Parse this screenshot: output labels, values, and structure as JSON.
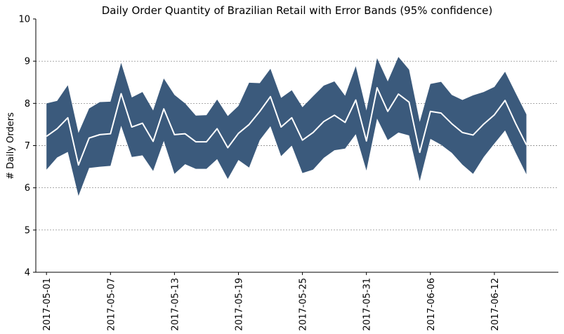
{
  "chart_data": {
    "type": "area",
    "title": "Daily Order Quantity of Brazilian Retail with Error Bands (95% confidence)",
    "xlabel": "",
    "ylabel": "# Daily Orders",
    "ylim": [
      4,
      10
    ],
    "xlim": [
      "2017-04-30",
      "2017-06-18"
    ],
    "y_ticks": [
      4,
      5,
      6,
      7,
      8,
      9,
      10
    ],
    "x_ticks": [
      "2017-05-01",
      "2017-05-07",
      "2017-05-13",
      "2017-05-19",
      "2017-05-25",
      "2017-05-31",
      "2017-06-06",
      "2017-06-12"
    ],
    "grid": "horizontal dashed",
    "colors": {
      "band": "#3b5a7c",
      "mean": "#ffffff"
    },
    "x": [
      "2017-05-01",
      "2017-05-02",
      "2017-05-03",
      "2017-05-04",
      "2017-05-05",
      "2017-05-06",
      "2017-05-07",
      "2017-05-08",
      "2017-05-09",
      "2017-05-10",
      "2017-05-11",
      "2017-05-12",
      "2017-05-13",
      "2017-05-14",
      "2017-05-15",
      "2017-05-16",
      "2017-05-17",
      "2017-05-18",
      "2017-05-19",
      "2017-05-20",
      "2017-05-21",
      "2017-05-22",
      "2017-05-23",
      "2017-05-24",
      "2017-05-25",
      "2017-05-26",
      "2017-05-27",
      "2017-05-28",
      "2017-05-29",
      "2017-05-30",
      "2017-05-31",
      "2017-06-01",
      "2017-06-02",
      "2017-06-03",
      "2017-06-04",
      "2017-06-05",
      "2017-06-06",
      "2017-06-07",
      "2017-06-08",
      "2017-06-09",
      "2017-06-10",
      "2017-06-11",
      "2017-06-12",
      "2017-06-13",
      "2017-06-14",
      "2017-06-15"
    ],
    "series": [
      {
        "values": [
          7.22,
          7.4,
          7.66,
          6.54,
          7.18,
          7.26,
          7.28,
          8.23,
          7.44,
          7.53,
          7.1,
          7.87,
          7.26,
          7.28,
          7.09,
          7.09,
          7.4,
          6.95,
          7.29,
          7.5,
          7.81,
          8.16,
          7.44,
          7.66,
          7.13,
          7.31,
          7.57,
          7.72,
          7.55,
          8.08,
          7.11,
          8.37,
          7.81,
          8.22,
          8.03,
          6.84,
          7.81,
          7.77,
          7.52,
          7.31,
          7.25,
          7.51,
          7.73,
          8.07,
          7.52,
          7.02
        ]
      },
      {
        "values": [
          6.43,
          6.72,
          6.85,
          5.81,
          6.47,
          6.5,
          6.52,
          7.47,
          6.73,
          6.77,
          6.4,
          7.11,
          6.33,
          6.56,
          6.45,
          6.45,
          6.68,
          6.21,
          6.66,
          6.48,
          7.13,
          7.46,
          6.75,
          7.0,
          6.35,
          6.43,
          6.71,
          6.89,
          6.93,
          7.27,
          6.41,
          7.64,
          7.13,
          7.31,
          7.24,
          6.16,
          7.16,
          7.02,
          6.83,
          6.55,
          6.33,
          6.73,
          7.05,
          7.36,
          6.83,
          6.32
        ]
      },
      {
        "values": [
          8.0,
          8.06,
          8.43,
          7.3,
          7.88,
          8.03,
          8.04,
          8.96,
          8.14,
          8.27,
          7.83,
          8.59,
          8.2,
          8.0,
          7.71,
          7.72,
          8.09,
          7.7,
          7.94,
          8.49,
          8.48,
          8.82,
          8.13,
          8.31,
          7.91,
          8.17,
          8.42,
          8.52,
          8.18,
          8.88,
          7.83,
          9.07,
          8.52,
          9.1,
          8.8,
          7.56,
          8.46,
          8.51,
          8.2,
          8.08,
          8.19,
          8.27,
          8.39,
          8.75,
          8.24,
          7.74
        ]
      }
    ]
  }
}
